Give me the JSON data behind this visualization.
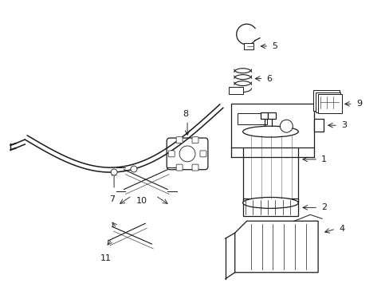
{
  "bg_color": "#ffffff",
  "line_color": "#1a1a1a",
  "fig_width": 4.89,
  "fig_height": 3.6,
  "dpi": 100,
  "parts": {
    "label_fontsize": 8,
    "arrow_lw": 0.7
  }
}
